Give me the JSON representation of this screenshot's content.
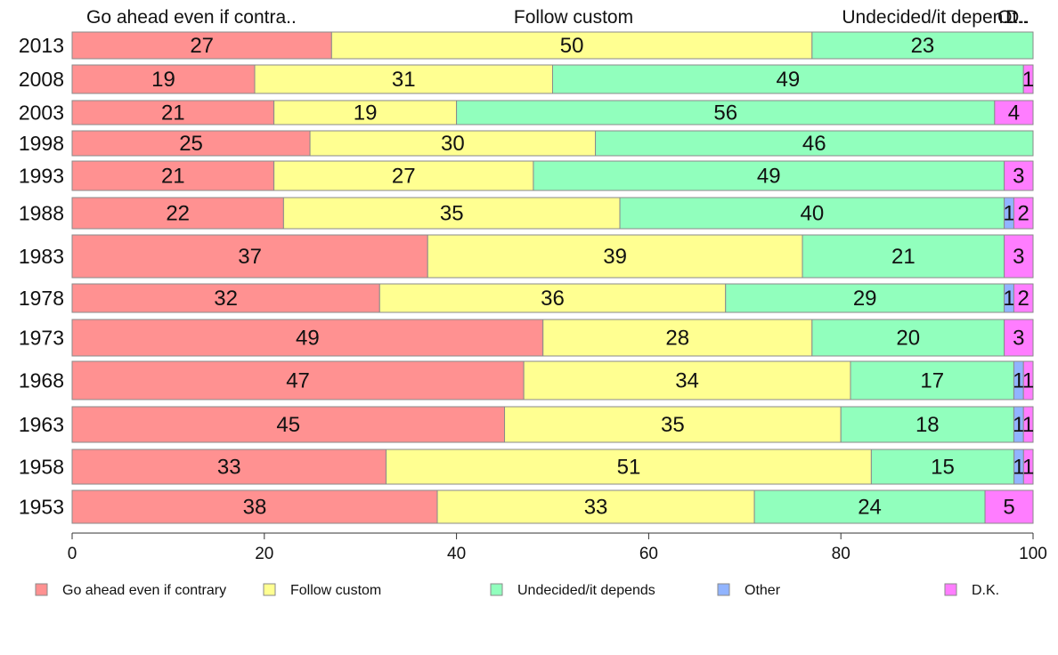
{
  "chart_data": {
    "type": "bar",
    "orientation": "horizontal",
    "stacked": "percent",
    "column_headers": [
      "Go ahead even if contra..",
      "Follow custom",
      "Undecided/it depen..",
      "Ot..",
      "D.."
    ],
    "categories": [
      "2013",
      "2008",
      "2003",
      "1998",
      "1993",
      "1988",
      "1983",
      "1978",
      "1973",
      "1968",
      "1963",
      "1958",
      "1953"
    ],
    "series": [
      {
        "name": "Go ahead even if contrary",
        "color": "#ff9191",
        "values": [
          27,
          19,
          21,
          25,
          21,
          22,
          37,
          32,
          49,
          47,
          45,
          33,
          38
        ],
        "labels": [
          "27",
          "19",
          "21",
          "25",
          "21",
          "22",
          "37",
          "32",
          "49",
          "47",
          "45",
          "33",
          "38"
        ]
      },
      {
        "name": "Follow custom",
        "color": "#ffff91",
        "values": [
          50,
          31,
          19,
          30,
          27,
          35,
          39,
          36,
          28,
          34,
          35,
          51,
          33
        ],
        "labels": [
          "50",
          "31",
          "19",
          "30",
          "27",
          "35",
          "39",
          "36",
          "28",
          "34",
          "35",
          "51",
          "33"
        ]
      },
      {
        "name": "Undecided/it depends",
        "color": "#91ffbd",
        "values": [
          23,
          49,
          56,
          46,
          49,
          40,
          21,
          29,
          20,
          17,
          18,
          15,
          24
        ],
        "labels": [
          "23",
          "49",
          "56",
          "46",
          "49",
          "40",
          "21",
          "29",
          "20",
          "17",
          "18",
          "15",
          "24"
        ]
      },
      {
        "name": "Other",
        "color": "#91b4ff",
        "values": [
          0,
          0,
          0,
          0,
          0,
          1,
          0,
          1,
          0,
          1,
          1,
          1,
          0
        ],
        "labels": [
          "",
          "",
          "",
          "",
          "",
          "1",
          "",
          "1",
          "",
          "1",
          "1",
          "1",
          ""
        ]
      },
      {
        "name": "D.K.",
        "color": "#ff7dff",
        "values": [
          0,
          1,
          4,
          0,
          3,
          2,
          3,
          2,
          3,
          1,
          1,
          1,
          5
        ],
        "labels": [
          "",
          "1",
          "4",
          "",
          "3",
          "2",
          "3",
          "2",
          "3",
          "1",
          "1",
          "1",
          "5"
        ]
      }
    ],
    "xlim": [
      0,
      100
    ],
    "xticks": [
      "0",
      "20",
      "40",
      "60",
      "80",
      "100"
    ],
    "grid": false,
    "legend_position": "bottom"
  }
}
